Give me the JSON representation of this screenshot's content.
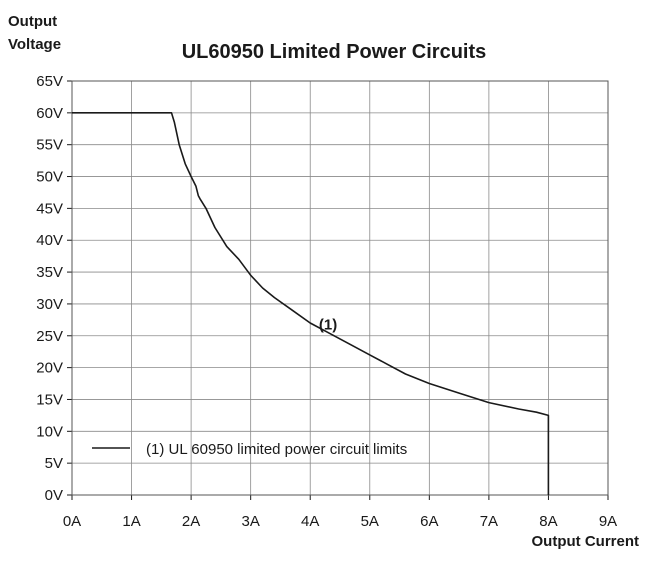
{
  "chart_data": {
    "type": "line",
    "title": "UL60950 Limited Power Circuits",
    "ylabel_lines": [
      "Output",
      "Voltage"
    ],
    "xlabel": "Output Current",
    "x_ticks": [
      "0A",
      "1A",
      "2A",
      "3A",
      "4A",
      "5A",
      "6A",
      "7A",
      "8A",
      "9A"
    ],
    "y_ticks": [
      "0V",
      "5V",
      "10V",
      "15V",
      "20V",
      "25V",
      "30V",
      "35V",
      "40V",
      "45V",
      "50V",
      "55V",
      "60V",
      "65V"
    ],
    "xlim": [
      0,
      9
    ],
    "ylim": [
      0,
      65
    ],
    "grid": true,
    "legend_position": "bottom-left",
    "series": [
      {
        "name": "(1) UL 60950 limited power circuit limits",
        "x": [
          0,
          1.67,
          1.72,
          1.8,
          1.9,
          2.0,
          2.08,
          2.12,
          2.15,
          2.25,
          2.4,
          2.6,
          2.8,
          3.0,
          3.2,
          3.4,
          3.7,
          4.0,
          4.3,
          4.7,
          5.0,
          5.3,
          5.6,
          6.0,
          6.5,
          7.0,
          7.5,
          7.8,
          8.0,
          8.0
        ],
        "y": [
          60,
          60,
          58.5,
          55,
          52,
          50,
          48.5,
          47,
          46.5,
          45,
          42,
          39,
          37,
          34.5,
          32.5,
          31,
          29,
          27,
          25.5,
          23.5,
          22,
          20.5,
          19,
          17.5,
          16,
          14.5,
          13.5,
          13,
          12.5,
          0
        ],
        "color": "#1a1a1a"
      }
    ],
    "annotations": [
      {
        "text": "(1)",
        "x": 4.3,
        "y": 26
      }
    ]
  }
}
